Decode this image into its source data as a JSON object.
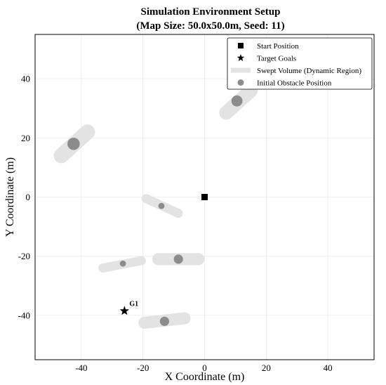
{
  "chart_data": {
    "type": "scatter",
    "title": "Simulation Environment Setup",
    "subtitle": "(Map Size: 50.0x50.0m, Seed: 11)",
    "xlabel": "X Coordinate (m)",
    "ylabel": "Y Coordinate (m)",
    "xlim": [
      -55,
      55
    ],
    "ylim": [
      -55,
      55
    ],
    "x_ticks": [
      -40,
      -20,
      0,
      20,
      40
    ],
    "y_ticks": [
      -40,
      -20,
      0,
      20,
      40
    ],
    "grid": true,
    "legend_position": "top-right",
    "legend": [
      {
        "label": "Start Position",
        "marker": "square"
      },
      {
        "label": "Target Goals",
        "marker": "star"
      },
      {
        "label": "Swept Volume (Dynamic Region)",
        "marker": "band"
      },
      {
        "label": "Initial Obstacle Position",
        "marker": "circle"
      }
    ],
    "start": {
      "x": 0,
      "y": 0
    },
    "goals": [
      {
        "label": "G1",
        "x": -26,
        "y": -38.5
      }
    ],
    "obstacles": [
      {
        "x": 10.5,
        "y": 32.5,
        "radius": 1.8,
        "swept_from": [
          7,
          28.5
        ],
        "swept_to": [
          15,
          36
        ]
      },
      {
        "x": -42.5,
        "y": 18,
        "radius": 2.0,
        "swept_from": [
          -46.5,
          14
        ],
        "swept_to": [
          -38,
          22
        ]
      },
      {
        "x": -14,
        "y": -3,
        "radius": 1.0,
        "swept_from": [
          -19,
          -0.5
        ],
        "swept_to": [
          -8.5,
          -5.5
        ]
      },
      {
        "x": -8.5,
        "y": -21,
        "radius": 1.5,
        "swept_from": [
          -15,
          -21
        ],
        "swept_to": [
          -2,
          -21
        ]
      },
      {
        "x": -26.5,
        "y": -22.5,
        "radius": 1.0,
        "swept_from": [
          -33,
          -24
        ],
        "swept_to": [
          -20.5,
          -21.5
        ]
      },
      {
        "x": -13,
        "y": -42,
        "radius": 1.5,
        "swept_from": [
          -19.5,
          -42.5
        ],
        "swept_to": [
          -6.5,
          -41
        ]
      }
    ],
    "colors": {
      "swept": "#e3e3e3",
      "obstacle": "#8c8c8c",
      "marker": "#000000",
      "grid": "#ebebeb",
      "frame": "#000000"
    }
  }
}
